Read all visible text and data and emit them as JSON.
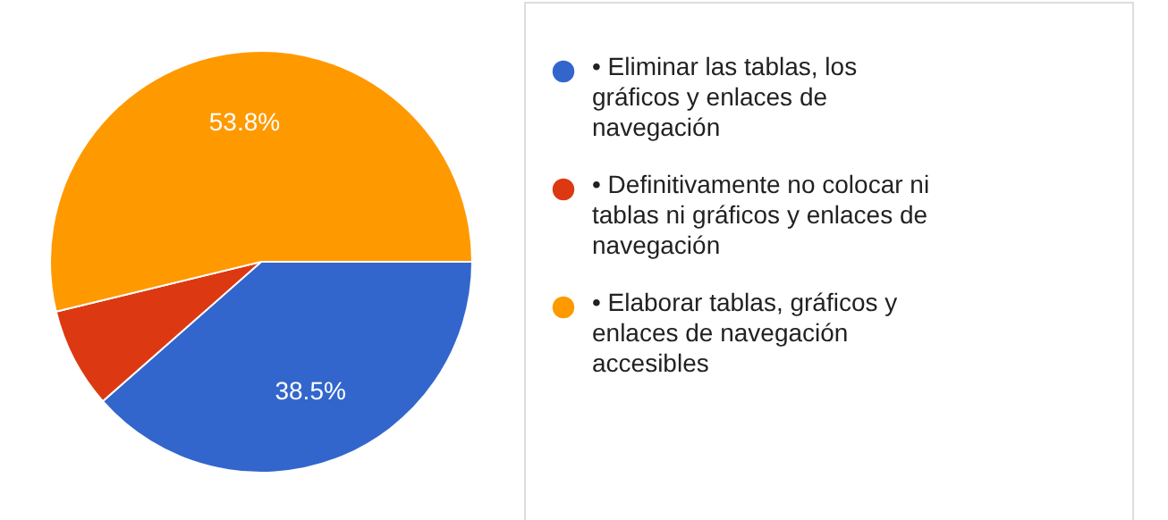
{
  "chart_data": {
    "type": "pie",
    "categories": [
      "• Eliminar las tablas, los gráficos y enlaces de navegación",
      "• Definitivamente no colocar ni tablas ni gráficos y enlaces de navegación",
      "• Elaborar tablas, gráficos y enlaces de navegación accesibles"
    ],
    "values": [
      38.5,
      7.7,
      53.8
    ],
    "colors": [
      "#3366cc",
      "#dc3912",
      "#ff9900"
    ],
    "value_labels": [
      "38.5%",
      null,
      "53.8%"
    ],
    "legend": "right"
  }
}
